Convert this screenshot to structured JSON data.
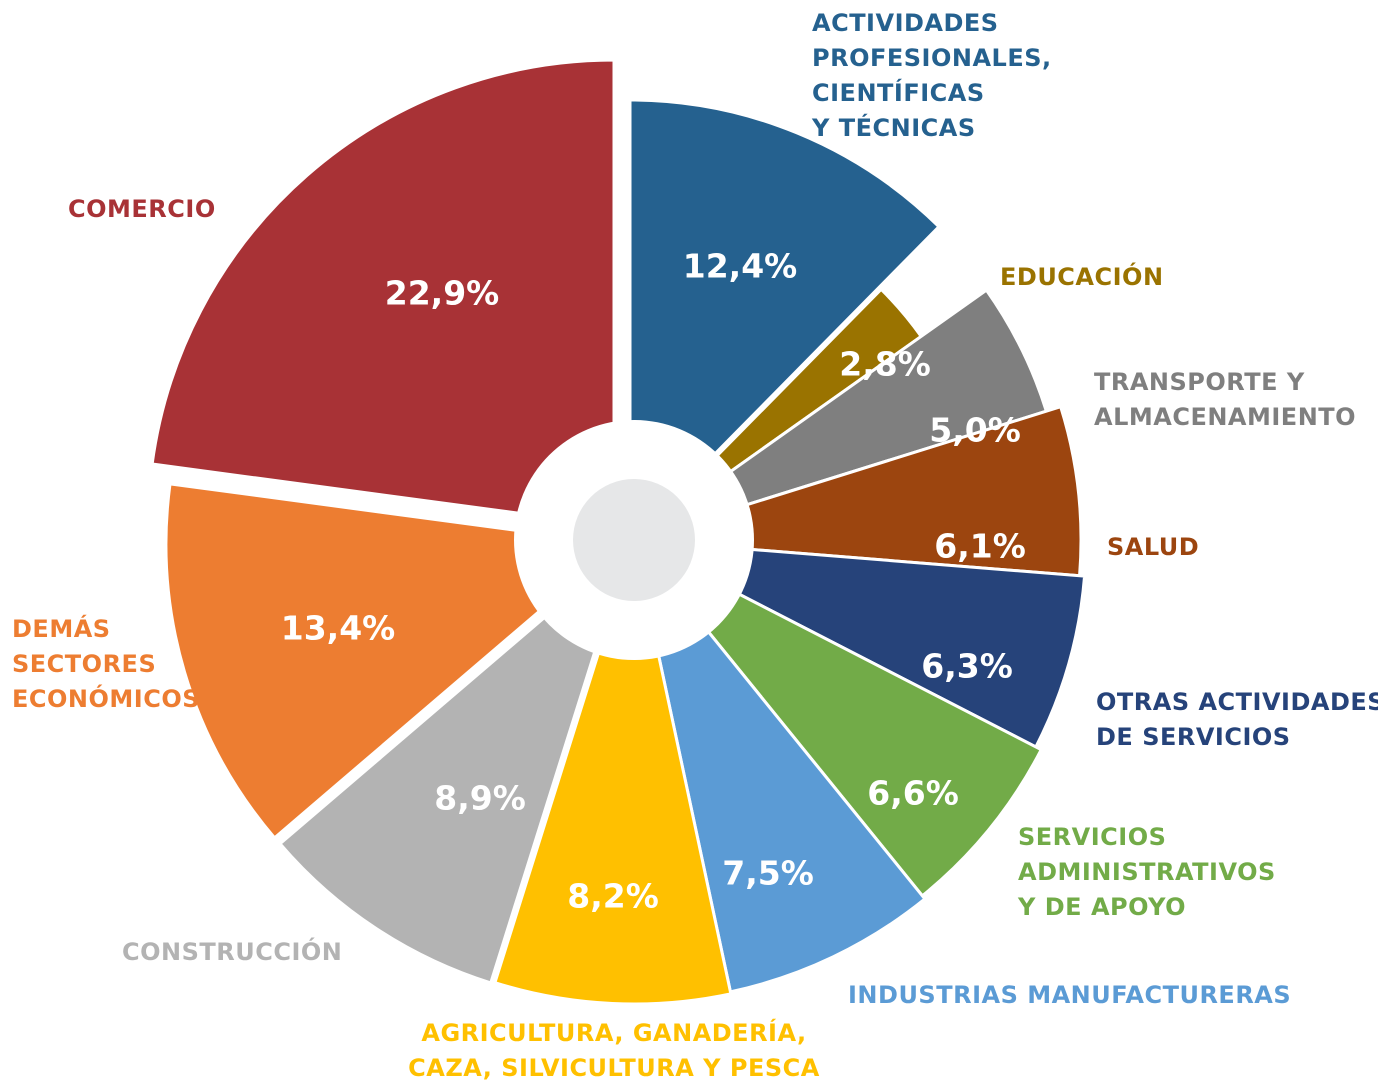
{
  "chart_data": {
    "type": "pie",
    "categories": [
      "ACTIVIDADES PROFESIONALES, CIENTÍFICAS Y TÉCNICAS",
      "EDUCACIÓN",
      "TRANSPORTE Y ALMACENAMIENTO",
      "SALUD",
      "OTRAS ACTIVIDADES DE SERVICIOS",
      "SERVICIOS ADMINISTRATIVOS Y DE APOYO",
      "INDUSTRIAS MANUFACTURERAS",
      "AGRICULTURA, GANADERÍA, CAZA, SILVICULTURA Y PESCA",
      "CONSTRUCCIÓN",
      "DEMÁS SECTORES ECONÓMICOS",
      "COMERCIO"
    ],
    "values": [
      12.4,
      2.8,
      5.0,
      6.1,
      6.3,
      6.6,
      7.5,
      8.2,
      8.9,
      13.4,
      22.9
    ],
    "value_labels": [
      "12,4%",
      "2,8%",
      "5,0%",
      "6,1%",
      "6,3%",
      "6,6%",
      "7,5%",
      "8,2%",
      "8,9%",
      "13,4%",
      "22,9%"
    ],
    "colors": [
      "#25618f",
      "#9a7300",
      "#7f7f7f",
      "#9c450f",
      "#26437a",
      "#72ab48",
      "#5b9bd5",
      "#ffc000",
      "#b3b3b3",
      "#ed7d31",
      "#a83236"
    ]
  }
}
